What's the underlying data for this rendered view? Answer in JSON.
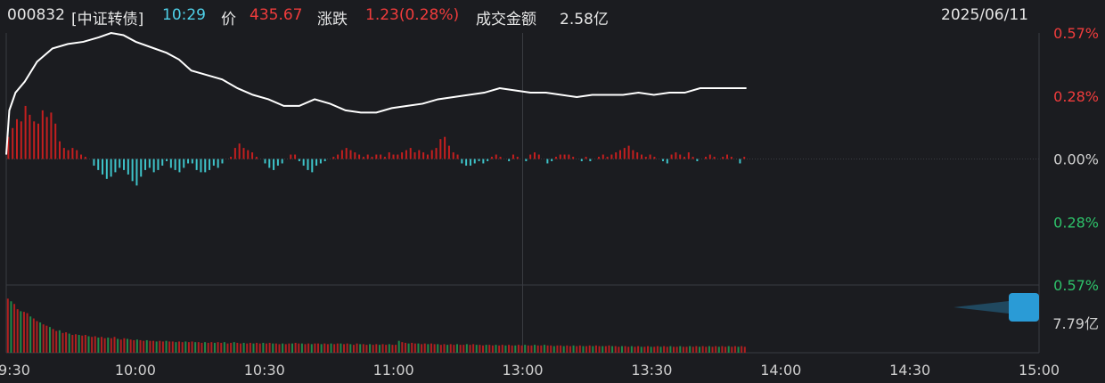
{
  "header": {
    "code": "000832",
    "name": "[中证转债]",
    "time": "10:29",
    "price_label": "价",
    "price": "435.67",
    "change_label": "涨跌",
    "change": "1.23(0.28%)",
    "amount_label": "成交金额",
    "amount": "2.58亿",
    "date": "2025/06/11"
  },
  "colors": {
    "background": "#1b1c20",
    "grid": "#3a3c42",
    "price_line": "#ffffff",
    "up": "#c41f1f",
    "down": "#3ec3c9",
    "up_text": "#f03c3c",
    "down_text": "#2ec26a",
    "time_text": "#4fd0e8",
    "widget": "#2a9bd6"
  },
  "chart_data": {
    "type": "line",
    "x_ticks": [
      "9:30",
      "10:00",
      "10:30",
      "11:00",
      "13:00",
      "13:30",
      "14:00",
      "14:30",
      "15:00"
    ],
    "y_ticks_pct": [
      {
        "label": "0.57%",
        "value": 0.57,
        "color": "up"
      },
      {
        "label": "0.28%",
        "value": 0.285,
        "color": "up"
      },
      {
        "label": "0.00%",
        "value": 0,
        "color": "neutral"
      },
      {
        "label": "0.28%",
        "value": -0.285,
        "color": "down"
      },
      {
        "label": "0.57%",
        "value": -0.57,
        "color": "down"
      }
    ],
    "ylim_pct": [
      -0.57,
      0.57
    ],
    "volume_label": "7.79亿",
    "price_series": {
      "name": "中证转债",
      "points": [
        [
          0,
          0.02
        ],
        [
          1,
          0.22
        ],
        [
          3,
          0.3
        ],
        [
          6,
          0.35
        ],
        [
          10,
          0.44
        ],
        [
          15,
          0.5
        ],
        [
          20,
          0.52
        ],
        [
          25,
          0.53
        ],
        [
          30,
          0.55
        ],
        [
          34,
          0.57
        ],
        [
          38,
          0.56
        ],
        [
          42,
          0.53
        ],
        [
          48,
          0.5
        ],
        [
          52,
          0.48
        ],
        [
          56,
          0.45
        ],
        [
          60,
          0.4
        ],
        [
          65,
          0.38
        ],
        [
          70,
          0.36
        ],
        [
          75,
          0.32
        ],
        [
          80,
          0.29
        ],
        [
          85,
          0.27
        ],
        [
          90,
          0.24
        ],
        [
          95,
          0.24
        ],
        [
          100,
          0.27
        ],
        [
          105,
          0.25
        ],
        [
          110,
          0.22
        ],
        [
          115,
          0.21
        ],
        [
          120,
          0.21
        ],
        [
          125,
          0.23
        ],
        [
          130,
          0.24
        ],
        [
          135,
          0.25
        ],
        [
          140,
          0.27
        ],
        [
          145,
          0.28
        ],
        [
          150,
          0.29
        ],
        [
          155,
          0.3
        ],
        [
          160,
          0.32
        ],
        [
          165,
          0.31
        ],
        [
          170,
          0.3
        ],
        [
          175,
          0.3
        ],
        [
          180,
          0.29
        ],
        [
          185,
          0.28
        ],
        [
          190,
          0.29
        ],
        [
          195,
          0.29
        ],
        [
          200,
          0.29
        ],
        [
          205,
          0.3
        ],
        [
          210,
          0.29
        ],
        [
          215,
          0.3
        ],
        [
          220,
          0.3
        ],
        [
          225,
          0.32
        ],
        [
          230,
          0.32
        ],
        [
          235,
          0.32
        ],
        [
          240,
          0.32
        ]
      ]
    },
    "diff_bars_pct": [
      0.1,
      0.14,
      0.18,
      0.17,
      0.24,
      0.2,
      0.17,
      0.16,
      0.22,
      0.19,
      0.21,
      0.16,
      0.08,
      0.05,
      0.04,
      0.05,
      0.04,
      0.02,
      0.01,
      0.0,
      -0.03,
      -0.05,
      -0.07,
      -0.09,
      -0.08,
      -0.06,
      -0.04,
      -0.05,
      -0.07,
      -0.1,
      -0.12,
      -0.08,
      -0.05,
      -0.04,
      -0.06,
      -0.05,
      -0.03,
      -0.01,
      -0.04,
      -0.05,
      -0.06,
      -0.04,
      -0.02,
      -0.02,
      -0.05,
      -0.06,
      -0.06,
      -0.05,
      -0.03,
      -0.04,
      -0.02,
      0.0,
      0.01,
      0.05,
      0.07,
      0.05,
      0.04,
      0.03,
      0.01,
      0.0,
      -0.02,
      -0.04,
      -0.05,
      -0.03,
      -0.02,
      0.0,
      0.02,
      0.02,
      -0.01,
      -0.03,
      -0.05,
      -0.06,
      -0.03,
      -0.02,
      -0.01,
      0.0,
      0.01,
      0.02,
      0.04,
      0.05,
      0.04,
      0.03,
      0.02,
      0.01,
      0.02,
      0.01,
      0.02,
      0.02,
      0.01,
      0.03,
      0.02,
      0.02,
      0.03,
      0.04,
      0.05,
      0.03,
      0.04,
      0.03,
      0.02,
      0.04,
      0.05,
      0.09,
      0.1,
      0.06,
      0.03,
      0.02,
      -0.02,
      -0.03,
      -0.03,
      -0.02,
      -0.01,
      -0.02,
      -0.01,
      0.01,
      0.02,
      0.01,
      0.0,
      -0.01,
      0.02,
      0.01,
      0.0,
      -0.01,
      0.02,
      0.03,
      0.02,
      0.0,
      -0.02,
      -0.01,
      0.01,
      0.02,
      0.02,
      0.02,
      0.01,
      0.0,
      -0.01,
      0.01,
      -0.01,
      0.0,
      0.01,
      0.02,
      0.01,
      0.02,
      0.03,
      0.04,
      0.05,
      0.06,
      0.04,
      0.03,
      0.02,
      0.01,
      0.02,
      0.01,
      0.0,
      -0.01,
      -0.02,
      0.02,
      0.03,
      0.02,
      0.01,
      0.03,
      0.01,
      -0.01,
      0.0,
      0.01,
      0.02,
      0.01,
      0.0,
      0.01,
      0.02,
      0.01,
      0.0,
      -0.02,
      0.01
    ],
    "volume_bars": [
      0.82,
      0.78,
      0.74,
      0.66,
      0.63,
      0.62,
      0.6,
      0.55,
      0.52,
      0.48,
      0.46,
      0.43,
      0.41,
      0.39,
      0.36,
      0.33,
      0.34,
      0.3,
      0.31,
      0.29,
      0.27,
      0.28,
      0.27,
      0.26,
      0.27,
      0.25,
      0.24,
      0.25,
      0.23,
      0.24,
      0.22,
      0.23,
      0.22,
      0.24,
      0.21,
      0.2,
      0.22,
      0.21,
      0.2,
      0.19,
      0.2,
      0.19,
      0.18,
      0.19,
      0.18,
      0.18,
      0.17,
      0.18,
      0.17,
      0.18,
      0.17,
      0.17,
      0.16,
      0.17,
      0.16,
      0.17,
      0.16,
      0.17,
      0.16,
      0.16,
      0.15,
      0.16,
      0.15,
      0.16,
      0.15,
      0.16,
      0.15,
      0.16,
      0.14,
      0.15,
      0.16,
      0.15,
      0.14,
      0.15,
      0.14,
      0.15,
      0.14,
      0.15,
      0.14,
      0.15,
      0.14,
      0.15,
      0.14,
      0.14,
      0.13,
      0.14,
      0.13,
      0.14,
      0.14,
      0.15,
      0.14,
      0.14,
      0.13,
      0.14,
      0.13,
      0.14,
      0.14,
      0.13,
      0.14,
      0.13,
      0.14,
      0.13,
      0.14,
      0.14,
      0.13,
      0.14,
      0.13,
      0.12,
      0.14,
      0.13,
      0.13,
      0.12,
      0.13,
      0.12,
      0.13,
      0.12,
      0.13,
      0.12,
      0.13,
      0.12,
      0.12,
      0.18,
      0.16,
      0.15,
      0.14,
      0.15,
      0.14,
      0.14,
      0.13,
      0.14,
      0.13,
      0.14,
      0.13,
      0.13,
      0.12,
      0.13,
      0.12,
      0.13,
      0.12,
      0.13,
      0.12,
      0.12,
      0.13,
      0.12,
      0.13,
      0.12,
      0.12,
      0.11,
      0.12,
      0.12,
      0.11,
      0.12,
      0.11,
      0.12,
      0.11,
      0.12,
      0.11,
      0.11,
      0.12,
      0.11,
      0.12,
      0.11,
      0.11,
      0.12,
      0.11,
      0.11,
      0.12,
      0.11,
      0.11,
      0.1,
      0.11,
      0.11,
      0.1,
      0.11,
      0.1,
      0.11,
      0.1,
      0.11,
      0.1,
      0.1,
      0.11,
      0.1,
      0.11,
      0.1,
      0.1,
      0.1,
      0.11,
      0.1,
      0.1,
      0.09,
      0.1,
      0.1,
      0.09,
      0.1,
      0.09,
      0.1,
      0.09,
      0.09,
      0.1,
      0.09,
      0.09,
      0.1,
      0.09,
      0.1,
      0.09,
      0.1,
      0.09,
      0.09,
      0.1,
      0.09,
      0.09,
      0.1,
      0.09,
      0.1,
      0.09,
      0.1,
      0.09,
      0.1,
      0.09,
      0.1,
      0.09,
      0.1,
      0.09,
      0.1,
      0.09,
      0.1,
      0.09,
      0.1,
      0.09
    ],
    "grid": true
  }
}
